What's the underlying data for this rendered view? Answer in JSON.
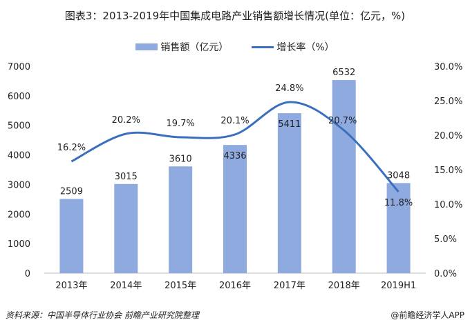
{
  "chart_data": {
    "type": "bar",
    "title": "图表3：2013-2019年中国集成电路产业销售额增长情况(单位：亿元，%)",
    "categories": [
      "2013年",
      "2014年",
      "2015年",
      "2016年",
      "2017年",
      "2018年",
      "2019H1"
    ],
    "series": [
      {
        "name": "销售额（亿元）",
        "type": "bar",
        "axis": "left",
        "color": "#8eaadf",
        "values": [
          2509,
          3015,
          3610,
          4336,
          5411,
          6532,
          3048
        ]
      },
      {
        "name": "增长率（%）",
        "type": "line",
        "axis": "right",
        "color": "#3a6fc0",
        "values": [
          16.2,
          20.2,
          19.7,
          20.1,
          24.8,
          20.7,
          11.8
        ]
      }
    ],
    "y_left": {
      "range": [
        0,
        7000
      ],
      "ticks": [
        "0",
        "1000",
        "2000",
        "3000",
        "4000",
        "5000",
        "6000",
        "7000"
      ]
    },
    "y_right": {
      "range": [
        0,
        30
      ],
      "ticks": [
        "0.0%",
        "5.0%",
        "10.0%",
        "15.0%",
        "20.0%",
        "25.0%",
        "30.0%"
      ]
    },
    "bar_labels": [
      "2509",
      "3015",
      "3610",
      "4336",
      "5411",
      "6532",
      "3048"
    ],
    "line_labels": [
      "16.2%",
      "20.2%",
      "19.7%",
      "20.1%",
      "24.8%",
      "20.7%",
      "11.8%"
    ],
    "legend": "top",
    "grid": false
  },
  "footer": {
    "source": "资料来源：中国半导体行业协会 前瞻产业研究院整理",
    "brand": "@前瞻经济学人APP"
  }
}
